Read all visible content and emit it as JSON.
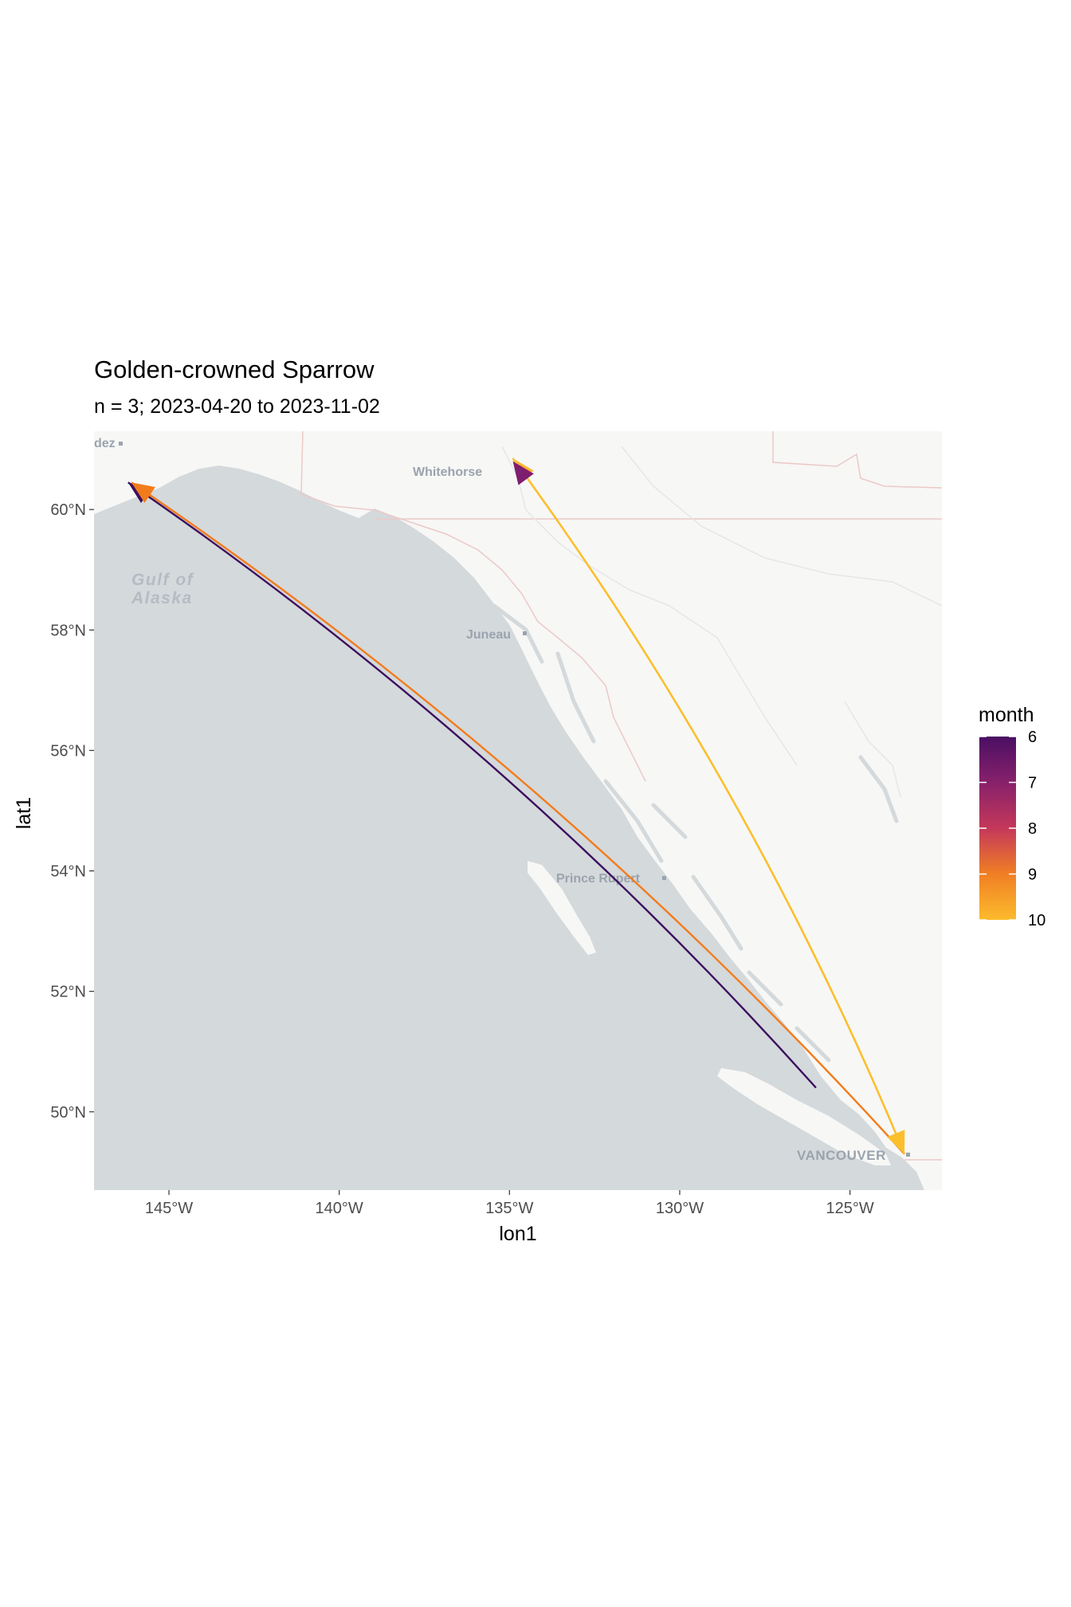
{
  "title": "Golden-crowned Sparrow",
  "subtitle": "n = 3; 2023-04-20 to 2023-11-02",
  "map_labels": {
    "valdez_fragment": "dez",
    "whitehorse": "Whitehorse",
    "gulf_line1": "Gulf of",
    "gulf_line2": "Alaska",
    "juneau": "Juneau",
    "prince_rupert": "Prince Rupert",
    "vancouver": "VANCOUVER"
  },
  "chart_data": {
    "type": "map-arrows",
    "title": "Golden-crowned Sparrow",
    "subtitle": "n = 3; 2023-04-20 to 2023-11-02",
    "xlabel": "lon1",
    "ylabel": "lat1",
    "x_ticks": [
      {
        "value": -145,
        "label": "145°W"
      },
      {
        "value": -140,
        "label": "140°W"
      },
      {
        "value": -135,
        "label": "135°W"
      },
      {
        "value": -130,
        "label": "130°W"
      },
      {
        "value": -125,
        "label": "125°W"
      }
    ],
    "y_ticks": [
      {
        "value": 60,
        "label": "60°N"
      },
      {
        "value": 58,
        "label": "58°N"
      },
      {
        "value": 56,
        "label": "56°N"
      },
      {
        "value": 54,
        "label": "54°N"
      },
      {
        "value": 52,
        "label": "52°N"
      },
      {
        "value": 50,
        "label": "50°N"
      }
    ],
    "xlim": [
      -147.2,
      -122.3
    ],
    "ylim": [
      48.7,
      61.3
    ],
    "legend": {
      "title": "month",
      "labels": [
        "6",
        "7",
        "8",
        "9",
        "10"
      ],
      "position": "right",
      "colors": [
        "#4a0f63",
        "#87216b",
        "#c4385a",
        "#f07f24",
        "#fcbb2c"
      ]
    },
    "series": [
      {
        "from": [
          -126.0,
          50.4
        ],
        "to": [
          -146.2,
          60.45
        ],
        "month": 6,
        "color": "#3d0f5e"
      },
      {
        "from": [
          -123.4,
          49.3
        ],
        "to": [
          -146.1,
          60.45
        ],
        "month": 9,
        "color": "#f27c1c"
      },
      {
        "from": [
          -123.4,
          49.3
        ],
        "to": [
          -134.9,
          60.85
        ],
        "month": 10,
        "color": "#fdb52e"
      },
      {
        "from": [
          -134.9,
          60.85
        ],
        "to": [
          -123.4,
          49.3
        ],
        "month": 10,
        "color": "#fcbf2c"
      },
      {
        "from": [
          -123.4,
          49.3
        ],
        "to": [
          -134.9,
          60.8
        ],
        "month": 7,
        "color": "#7d1e6e",
        "head_only": true
      }
    ]
  }
}
